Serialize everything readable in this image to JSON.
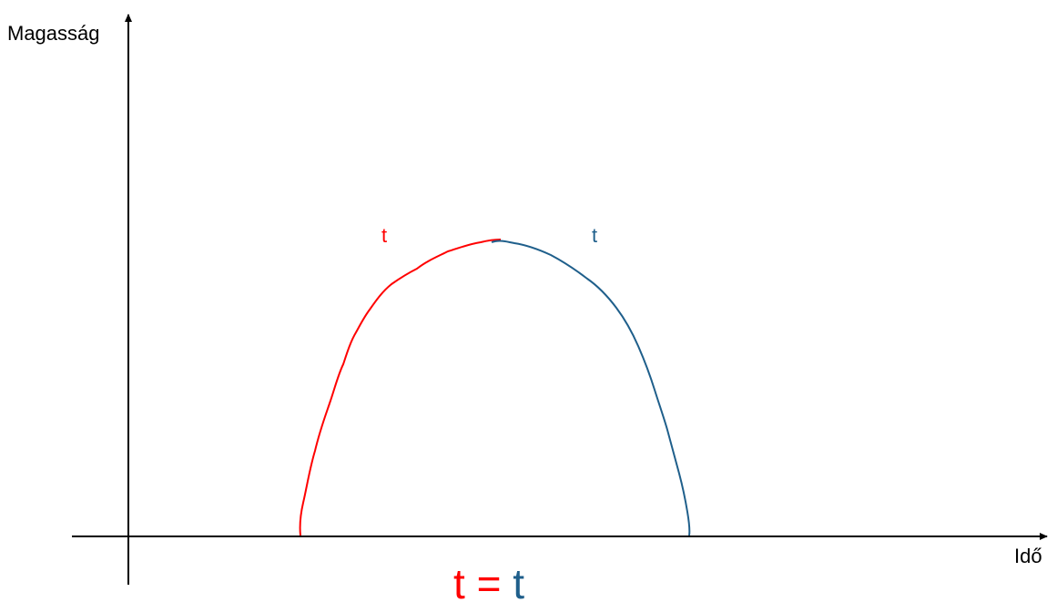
{
  "axes": {
    "y_label": "Magasság",
    "x_label": "Idő"
  },
  "segments": {
    "rise": {
      "label": "t",
      "color": "#ff0000"
    },
    "fall": {
      "label": "t",
      "color": "#1f5f8b"
    }
  },
  "equation": {
    "left": "t",
    "operator": "=",
    "right": "t"
  },
  "colors": {
    "axis": "#000000",
    "rise": "#ff0000",
    "fall": "#1f5f8b"
  }
}
